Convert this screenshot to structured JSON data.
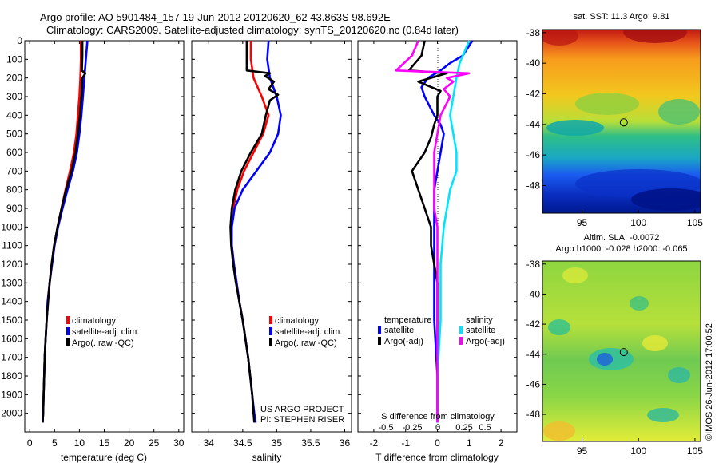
{
  "header": {
    "line1": "Argo profile: AO 5901484_157 19-Jun-2012 20120620_62 43.863S 98.692E",
    "line2": "Climatology: CARS2009. Satellite-adjusted climatology: synTS_20120620.nc (0.84d later)"
  },
  "colors": {
    "climatology": "#ff0000",
    "satellite": "#0000ff",
    "argo": "#000000",
    "sal_satellite": "#00e5ff",
    "sal_argo": "#ff00ff"
  },
  "chart_data": [
    {
      "id": "temperature",
      "type": "line",
      "xlabel": "temperature (deg C)",
      "ylabel": "",
      "xlim": [
        -1,
        31
      ],
      "ylim": [
        2100,
        0
      ],
      "xticks": [
        0,
        5,
        10,
        15,
        20,
        25,
        30
      ],
      "yticks": [
        0,
        100,
        200,
        300,
        400,
        500,
        600,
        700,
        800,
        900,
        1000,
        1100,
        1200,
        1300,
        1400,
        1500,
        1600,
        1700,
        1800,
        1900,
        2000
      ],
      "legend": [
        "climatology",
        "satellite-adj. clim.",
        "Argo(..raw -QC)"
      ],
      "series": [
        {
          "name": "climatology",
          "color": "#ff0000",
          "points": [
            [
              10.3,
              0
            ],
            [
              10.3,
              100
            ],
            [
              10.2,
              200
            ],
            [
              10.0,
              300
            ],
            [
              9.7,
              400
            ],
            [
              9.4,
              500
            ],
            [
              8.9,
              600
            ],
            [
              8.1,
              700
            ],
            [
              7.2,
              800
            ],
            [
              6.4,
              900
            ],
            [
              5.6,
              1000
            ],
            [
              4.9,
              1100
            ],
            [
              4.4,
              1200
            ],
            [
              4.0,
              1300
            ],
            [
              3.7,
              1400
            ],
            [
              3.4,
              1500
            ],
            [
              3.2,
              1600
            ],
            [
              3.0,
              1700
            ],
            [
              2.9,
              1800
            ],
            [
              2.8,
              1900
            ],
            [
              2.7,
              2000
            ],
            [
              2.6,
              2050
            ]
          ]
        },
        {
          "name": "satellite-adj. clim.",
          "color": "#0000ff",
          "points": [
            [
              11.6,
              0
            ],
            [
              11.3,
              100
            ],
            [
              11.0,
              200
            ],
            [
              10.7,
              300
            ],
            [
              10.4,
              400
            ],
            [
              10.0,
              500
            ],
            [
              9.5,
              600
            ],
            [
              8.7,
              700
            ],
            [
              7.6,
              800
            ],
            [
              6.6,
              900
            ],
            [
              5.7,
              1000
            ],
            [
              5.0,
              1100
            ],
            [
              4.5,
              1200
            ],
            [
              4.0,
              1300
            ],
            [
              3.6,
              1400
            ],
            [
              3.4,
              1500
            ],
            [
              3.2,
              1600
            ],
            [
              3.0,
              1700
            ],
            [
              2.9,
              1800
            ],
            [
              2.8,
              1900
            ],
            [
              2.7,
              2000
            ],
            [
              2.6,
              2050
            ]
          ]
        },
        {
          "name": "Argo(..raw -QC)",
          "color": "#000000",
          "points": [
            [
              10.6,
              0
            ],
            [
              10.6,
              80
            ],
            [
              10.5,
              160
            ],
            [
              11.2,
              175
            ],
            [
              10.6,
              200
            ],
            [
              10.5,
              260
            ],
            [
              10.4,
              300
            ],
            [
              10.1,
              400
            ],
            [
              9.7,
              500
            ],
            [
              9.2,
              600
            ],
            [
              8.4,
              700
            ],
            [
              7.3,
              800
            ],
            [
              6.4,
              900
            ],
            [
              5.6,
              1000
            ],
            [
              4.9,
              1100
            ],
            [
              4.4,
              1200
            ],
            [
              4.0,
              1300
            ],
            [
              3.7,
              1400
            ],
            [
              3.4,
              1500
            ],
            [
              3.2,
              1600
            ],
            [
              3.0,
              1700
            ],
            [
              2.9,
              1800
            ],
            [
              2.8,
              1900
            ],
            [
              2.7,
              2000
            ],
            [
              2.6,
              2050
            ]
          ]
        }
      ]
    },
    {
      "id": "salinity",
      "type": "line",
      "xlabel": "salinity",
      "xlim": [
        33.75,
        36.1
      ],
      "ylim": [
        2100,
        0
      ],
      "xticks": [
        34,
        34.5,
        35,
        35.5,
        36
      ],
      "legend": [
        "climatology",
        "satellite-adj. clim.",
        "Argo(..raw -QC)"
      ],
      "annotation": [
        "US ARGO PROJECT",
        "PI: STEPHEN RISER"
      ],
      "series": [
        {
          "name": "climatology",
          "color": "#ff0000",
          "points": [
            [
              34.62,
              0
            ],
            [
              34.62,
              100
            ],
            [
              34.66,
              200
            ],
            [
              34.78,
              300
            ],
            [
              34.88,
              400
            ],
            [
              34.8,
              500
            ],
            [
              34.66,
              600
            ],
            [
              34.52,
              700
            ],
            [
              34.42,
              800
            ],
            [
              34.36,
              900
            ],
            [
              34.33,
              1000
            ],
            [
              34.34,
              1100
            ],
            [
              34.37,
              1200
            ],
            [
              34.41,
              1300
            ],
            [
              34.45,
              1400
            ],
            [
              34.5,
              1500
            ],
            [
              34.54,
              1600
            ],
            [
              34.58,
              1700
            ],
            [
              34.61,
              1800
            ],
            [
              34.64,
              1900
            ],
            [
              34.66,
              2000
            ],
            [
              34.68,
              2050
            ]
          ]
        },
        {
          "name": "satellite-adj. clim.",
          "color": "#0000ff",
          "points": [
            [
              34.88,
              0
            ],
            [
              34.86,
              100
            ],
            [
              34.9,
              200
            ],
            [
              35.0,
              300
            ],
            [
              35.06,
              400
            ],
            [
              35.02,
              500
            ],
            [
              34.9,
              600
            ],
            [
              34.7,
              700
            ],
            [
              34.5,
              800
            ],
            [
              34.38,
              900
            ],
            [
              34.34,
              1000
            ],
            [
              34.34,
              1100
            ],
            [
              34.37,
              1200
            ],
            [
              34.41,
              1300
            ],
            [
              34.45,
              1400
            ],
            [
              34.5,
              1500
            ],
            [
              34.54,
              1600
            ],
            [
              34.58,
              1700
            ],
            [
              34.61,
              1800
            ],
            [
              34.64,
              1900
            ],
            [
              34.67,
              2000
            ],
            [
              34.69,
              2050
            ]
          ]
        },
        {
          "name": "Argo(..raw -QC)",
          "color": "#000000",
          "points": [
            [
              34.56,
              0
            ],
            [
              34.56,
              160
            ],
            [
              34.9,
              175
            ],
            [
              34.83,
              190
            ],
            [
              34.96,
              220
            ],
            [
              34.88,
              260
            ],
            [
              35.02,
              290
            ],
            [
              34.9,
              320
            ],
            [
              34.84,
              400
            ],
            [
              34.78,
              500
            ],
            [
              34.62,
              600
            ],
            [
              34.48,
              700
            ],
            [
              34.39,
              800
            ],
            [
              34.34,
              900
            ],
            [
              34.32,
              1000
            ],
            [
              34.33,
              1100
            ],
            [
              34.36,
              1200
            ],
            [
              34.4,
              1300
            ],
            [
              34.45,
              1400
            ],
            [
              34.5,
              1500
            ],
            [
              34.54,
              1600
            ],
            [
              34.58,
              1700
            ],
            [
              34.61,
              1800
            ],
            [
              34.64,
              1900
            ],
            [
              34.66,
              2000
            ],
            [
              34.67,
              2050
            ]
          ]
        }
      ]
    },
    {
      "id": "difference",
      "type": "line",
      "xlabel": "T difference from climatology",
      "xlim": [
        -2.5,
        2.5
      ],
      "ylim": [
        2100,
        0
      ],
      "xticks": [
        -2,
        -1,
        0,
        1,
        2
      ],
      "top_axis_label": "S difference from climatology",
      "top_ticks": [
        "-0.5",
        "-0.25",
        "0",
        "0.25",
        "0.5"
      ],
      "legend_headers": [
        "temperature",
        "salinity"
      ],
      "legend": [
        "satellite",
        "Argo(-adj)",
        "satellite",
        "Argo(-adj)"
      ],
      "series": [
        {
          "name": "temperature satellite",
          "color": "#0000ff",
          "points": [
            [
              1.1,
              0
            ],
            [
              0.8,
              80
            ],
            [
              0.4,
              120
            ],
            [
              0.1,
              160
            ],
            [
              -0.3,
              200
            ],
            [
              -0.5,
              250
            ],
            [
              -0.4,
              300
            ],
            [
              -0.1,
              400
            ],
            [
              0.1,
              450
            ],
            [
              0.2,
              500
            ],
            [
              0.1,
              600
            ],
            [
              0.0,
              700
            ],
            [
              -0.1,
              800
            ],
            [
              -0.1,
              900
            ],
            [
              -0.1,
              1000
            ],
            [
              -0.1,
              1200
            ],
            [
              -0.1,
              1500
            ],
            [
              0.0,
              1800
            ],
            [
              0.0,
              2050
            ]
          ]
        },
        {
          "name": "temperature Argo(-adj)",
          "color": "#000000",
          "points": [
            [
              -0.4,
              0
            ],
            [
              -0.5,
              80
            ],
            [
              -0.9,
              160
            ],
            [
              0.3,
              175
            ],
            [
              -0.6,
              220
            ],
            [
              0.1,
              270
            ],
            [
              0.0,
              300
            ],
            [
              0.0,
              400
            ],
            [
              -0.1,
              450
            ],
            [
              -0.2,
              520
            ],
            [
              -0.4,
              600
            ],
            [
              -0.8,
              700
            ],
            [
              -0.6,
              800
            ],
            [
              -0.4,
              900
            ],
            [
              -0.2,
              1000
            ],
            [
              -0.2,
              1100
            ],
            [
              -0.1,
              1200
            ],
            [
              0.0,
              1300
            ],
            [
              0.0,
              1400
            ],
            [
              0.0,
              2050
            ]
          ]
        },
        {
          "name": "salinity satellite",
          "color": "#00e5ff",
          "points": [
            [
              1.0,
              0
            ],
            [
              0.8,
              80
            ],
            [
              0.7,
              120
            ],
            [
              0.6,
              200
            ],
            [
              0.5,
              300
            ],
            [
              0.4,
              400
            ],
            [
              0.5,
              500
            ],
            [
              0.6,
              600
            ],
            [
              0.6,
              700
            ],
            [
              0.4,
              800
            ],
            [
              0.3,
              900
            ],
            [
              0.2,
              1000
            ],
            [
              0.1,
              1200
            ],
            [
              0.1,
              1500
            ],
            [
              0.0,
              1800
            ],
            [
              0.0,
              2050
            ]
          ]
        },
        {
          "name": "salinity Argo(-adj)",
          "color": "#ff00ff",
          "points": [
            [
              -0.6,
              0
            ],
            [
              -0.8,
              80
            ],
            [
              -1.3,
              160
            ],
            [
              1.0,
              175
            ],
            [
              0.3,
              200
            ],
            [
              0.5,
              220
            ],
            [
              0.2,
              260
            ],
            [
              0.4,
              300
            ],
            [
              0.1,
              400
            ],
            [
              0.0,
              500
            ],
            [
              -0.1,
              600
            ],
            [
              -0.1,
              700
            ],
            [
              -0.1,
              800
            ],
            [
              -0.1,
              900
            ],
            [
              0.0,
              1000
            ],
            [
              0.0,
              1200
            ],
            [
              0.0,
              1500
            ],
            [
              0.0,
              2050
            ]
          ]
        }
      ]
    },
    {
      "id": "sst_map",
      "type": "heatmap",
      "title": "sat. SST: 11.3 Argo: 9.81",
      "xticks": [
        95,
        100,
        105
      ],
      "yticks": [
        -38,
        -40,
        -42,
        -44,
        -46,
        -48
      ],
      "xlim": [
        91.5,
        105.5
      ],
      "ylim": [
        -49.8,
        -37.8
      ],
      "marker": {
        "lon": 98.7,
        "lat": -43.86
      }
    },
    {
      "id": "sla_map",
      "type": "heatmap",
      "title": "Altim. SLA: -0.0072",
      "subtitle": "Argo h1000: -0.028 h2000: -0.065",
      "side_label": "©IMOS 26-Jun-2012 17:00:52",
      "xticks": [
        95,
        100,
        105
      ],
      "yticks": [
        -38,
        -40,
        -42,
        -44,
        -46,
        -48
      ],
      "xlim": [
        91.5,
        105.5
      ],
      "ylim": [
        -49.8,
        -37.8
      ],
      "marker": {
        "lon": 98.7,
        "lat": -43.86
      }
    }
  ]
}
